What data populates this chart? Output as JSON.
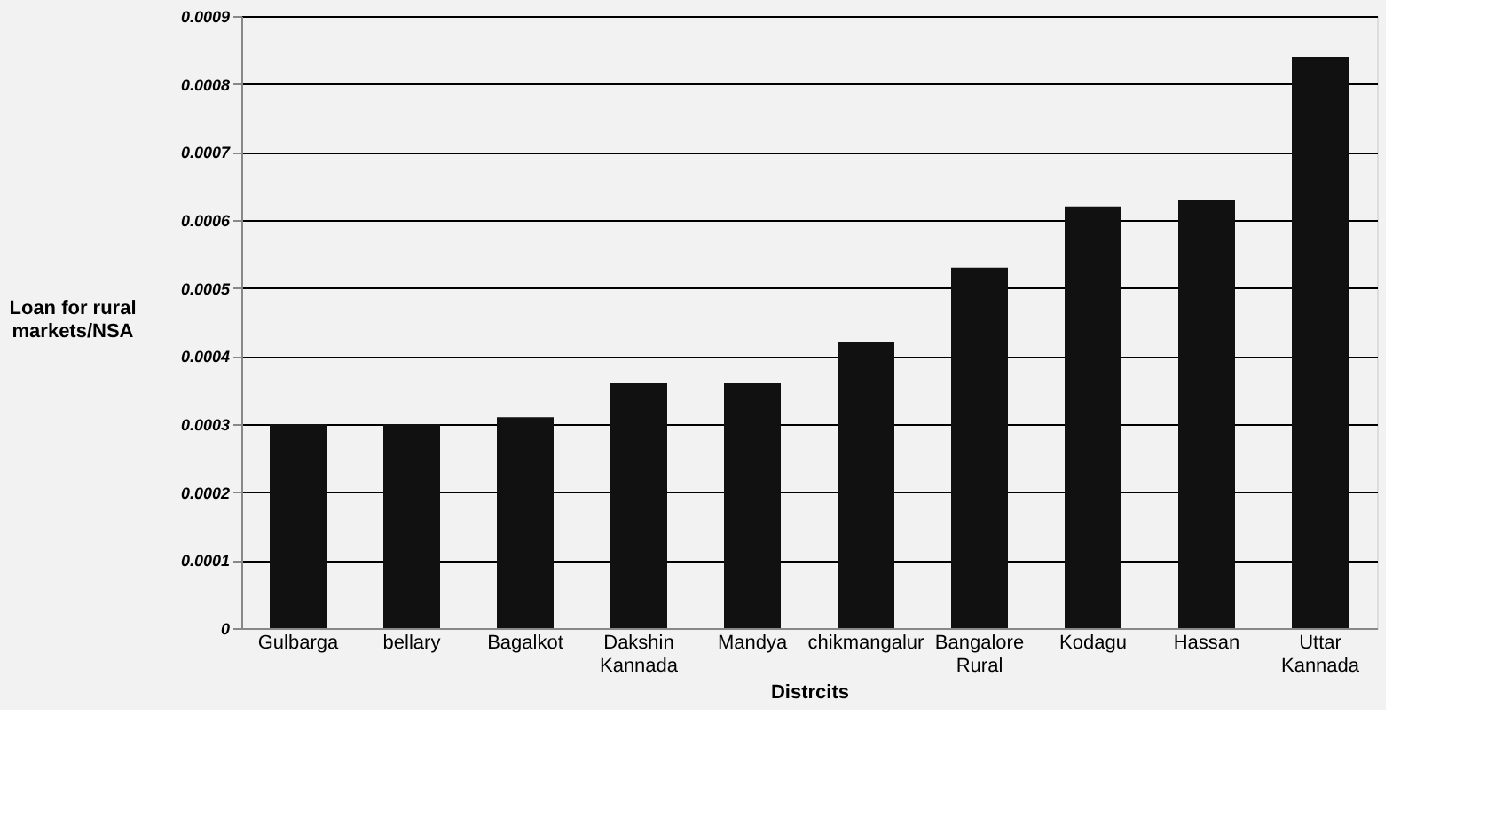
{
  "chart_data": {
    "type": "bar",
    "xlabel": "Distrcits",
    "ylabel": "Loan for rural markets/NSA",
    "categories": [
      "Gulbarga",
      "bellary",
      "Bagalkot",
      "Dakshin Kannada",
      "Mandya",
      "chikmangalur",
      "Bangalore Rural",
      "Kodagu",
      "Hassan",
      "Uttar Kannada"
    ],
    "values": [
      0.0003,
      0.0003,
      0.00031,
      0.00036,
      0.00036,
      0.00042,
      0.00053,
      0.00062,
      0.00063,
      0.00084
    ],
    "color": "#111111",
    "ylim": [
      0,
      0.0009
    ],
    "yticks": [
      0,
      0.0001,
      0.0002,
      0.0003,
      0.0004,
      0.0005,
      0.0006,
      0.0007,
      0.0008,
      0.0009
    ],
    "grid": "y"
  }
}
